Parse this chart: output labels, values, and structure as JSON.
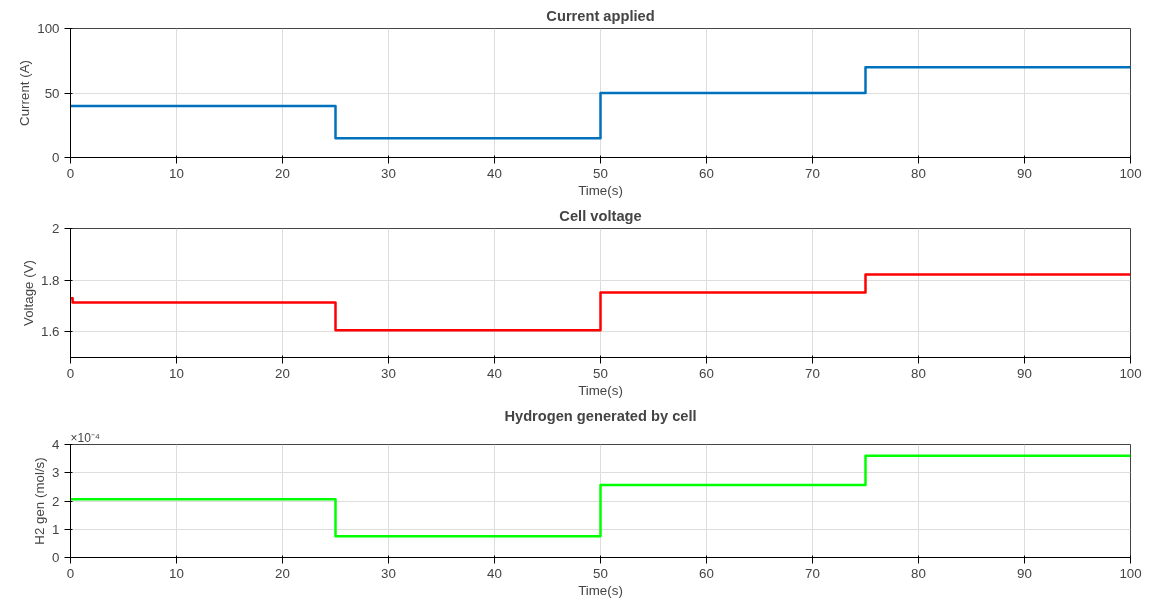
{
  "chart_data": [
    {
      "type": "step",
      "title": "Current applied",
      "xlabel": "Time(s)",
      "ylabel": "Current (A)",
      "x": [
        0,
        25,
        50,
        75,
        100
      ],
      "values": [
        40,
        15,
        50,
        70,
        70
      ],
      "color": "#0072bd",
      "xlim": [
        0,
        100
      ],
      "ylim": [
        0,
        100
      ],
      "xticks": [
        0,
        10,
        20,
        30,
        40,
        50,
        60,
        70,
        80,
        90,
        100
      ],
      "yticks": [
        0,
        50,
        100
      ],
      "grid": true
    },
    {
      "type": "step",
      "title": "Cell voltage",
      "xlabel": "Time(s)",
      "ylabel": "Voltage (V)",
      "x": [
        0,
        0.2,
        25,
        50,
        75,
        100
      ],
      "values": [
        1.73,
        1.713,
        1.606,
        1.752,
        1.822,
        1.822
      ],
      "color": "#ff0000",
      "xlim": [
        0,
        100
      ],
      "ylim": [
        1.5,
        2
      ],
      "xticks": [
        0,
        10,
        20,
        30,
        40,
        50,
        60,
        70,
        80,
        90,
        100
      ],
      "yticks": [
        1.6,
        1.8,
        2
      ],
      "grid": true
    },
    {
      "type": "step",
      "title": "Hydrogen generated by cell",
      "xlabel": "Time(s)",
      "ylabel": "H2 gen (mol/s)",
      "annotations": [
        "×10⁻⁴"
      ],
      "x": [
        0,
        25,
        50,
        75,
        100
      ],
      "values": [
        2.06,
        0.75,
        2.57,
        3.6,
        3.6
      ],
      "color": "#00ff00",
      "xlim": [
        0,
        100
      ],
      "ylim": [
        0,
        4
      ],
      "xticks": [
        0,
        10,
        20,
        30,
        40,
        50,
        60,
        70,
        80,
        90,
        100
      ],
      "yticks": [
        0,
        1,
        2,
        3,
        4
      ],
      "grid": true
    }
  ]
}
